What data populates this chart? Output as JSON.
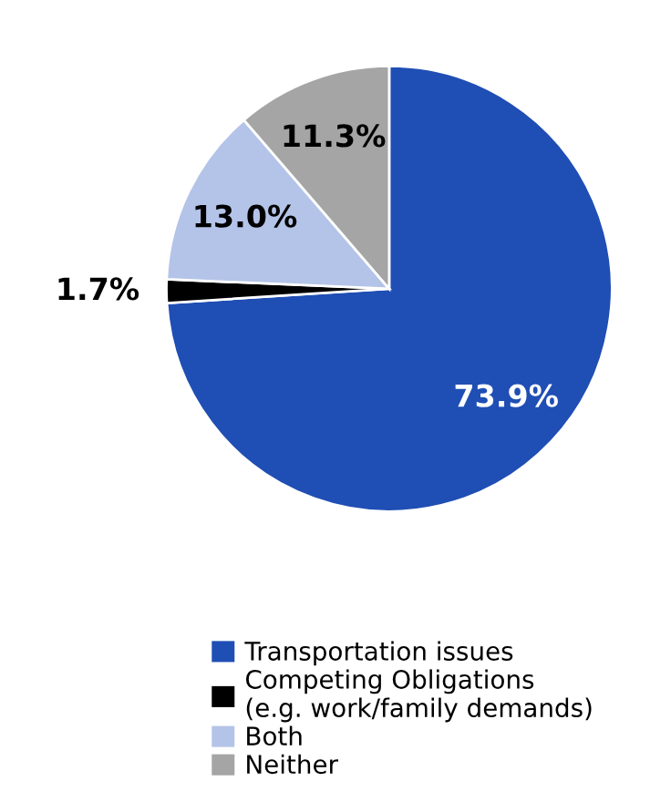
{
  "chart_data": {
    "type": "pie",
    "categories": [
      "Transportation issues",
      "Competing Obligations\n(e.g. work/family demands)",
      "Both",
      "Neither"
    ],
    "values": [
      73.9,
      1.7,
      13.0,
      11.3
    ],
    "colors": [
      "#1f4eb4",
      "#000000",
      "#b4c4e8",
      "#a5a5a5"
    ],
    "value_labels": [
      "73.9%",
      "1.7%",
      "13.0%",
      "11.3%"
    ],
    "legend": "bottom"
  }
}
